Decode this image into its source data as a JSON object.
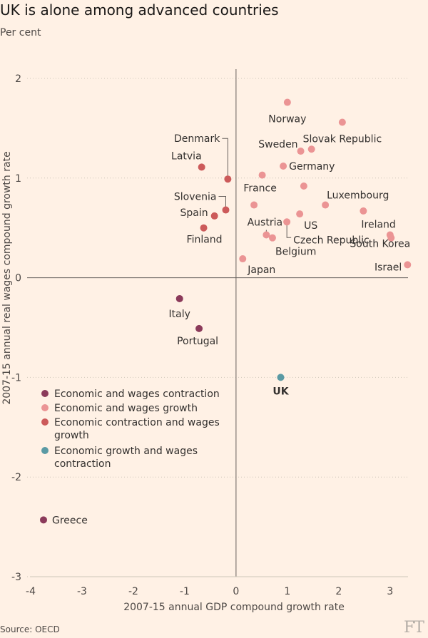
{
  "title": "UK is alone among advanced countries",
  "subtitle": "Per cent",
  "source": "Source: OECD",
  "logo": "FT",
  "colors": {
    "background": "#fff1e5",
    "Economic and wages contraction": "#8b3a5a",
    "Economic and wages growth": "#eb9494",
    "Economic contraction and wages growth": "#cc5a5a",
    "Economic growth and wages contraction": "#5a9aa4"
  },
  "chart_data": {
    "type": "scatter",
    "title": "UK is alone among advanced countries",
    "xlabel": "2007-15 annual GDP compound growth rate",
    "ylabel": "2007-15 annual real wages compound growth rate",
    "xlim": [
      -4,
      3.35
    ],
    "ylim": [
      -3,
      2
    ],
    "xticks": [
      "-4",
      "-3",
      "-2",
      "-1",
      "0",
      "1",
      "2",
      "3"
    ],
    "yticks": [
      "-3",
      "-2",
      "-1",
      "0",
      "1",
      "2"
    ],
    "grid": "horizontal dotted",
    "legend_position": "bottom-left",
    "series": [
      {
        "name": "Economic and wages contraction",
        "points": [
          {
            "label": "Italy",
            "x": -1.1,
            "y": -0.21
          },
          {
            "label": "Portugal",
            "x": -0.72,
            "y": -0.51
          },
          {
            "label": "Greece",
            "x": -3.75,
            "y": -2.43
          }
        ]
      },
      {
        "name": "Economic and wages growth",
        "points": [
          {
            "label": "Norway",
            "x": 1.0,
            "y": 1.76
          },
          {
            "label": "Slovak Republic",
            "x": 2.07,
            "y": 1.56
          },
          {
            "label": "Sweden",
            "x": 1.26,
            "y": 1.27
          },
          {
            "label": "",
            "x": 1.47,
            "y": 1.29
          },
          {
            "label": "Germany",
            "x": 0.92,
            "y": 1.12
          },
          {
            "label": "France",
            "x": 0.51,
            "y": 1.03
          },
          {
            "label": "",
            "x": 1.32,
            "y": 0.92
          },
          {
            "label": "Luxembourg",
            "x": 1.74,
            "y": 0.73
          },
          {
            "label": "",
            "x": 0.35,
            "y": 0.73
          },
          {
            "label": "",
            "x": 2.48,
            "y": 0.67
          },
          {
            "label": "US",
            "x": 1.24,
            "y": 0.64
          },
          {
            "label": "Czech Republic",
            "x": 0.99,
            "y": 0.56
          },
          {
            "label": "Austria",
            "x": 0.59,
            "y": 0.43
          },
          {
            "label": "Belgium",
            "x": 0.71,
            "y": 0.4
          },
          {
            "label": "Ireland",
            "x": 3.0,
            "y": 0.43
          },
          {
            "label": "South Korea",
            "x": 3.02,
            "y": 0.4
          },
          {
            "label": "Japan",
            "x": 0.13,
            "y": 0.19
          },
          {
            "label": "Israel",
            "x": 3.34,
            "y": 0.13
          }
        ]
      },
      {
        "name": "Economic contraction and wages growth",
        "points": [
          {
            "label": "Latvia",
            "x": -0.67,
            "y": 1.11
          },
          {
            "label": "Denmark",
            "x": -0.16,
            "y": 0.99
          },
          {
            "label": "Slovenia",
            "x": -0.2,
            "y": 0.68
          },
          {
            "label": "Spain",
            "x": -0.42,
            "y": 0.62
          },
          {
            "label": "Finland",
            "x": -0.63,
            "y": 0.5
          }
        ]
      },
      {
        "name": "Economic growth and wages contraction",
        "points": [
          {
            "label": "UK",
            "x": 0.87,
            "y": -1.0
          }
        ]
      }
    ],
    "legend": [
      "Economic and wages contraction",
      "Economic and wages growth",
      "Economic contraction and wages growth",
      "Economic growth and wages contraction"
    ]
  }
}
